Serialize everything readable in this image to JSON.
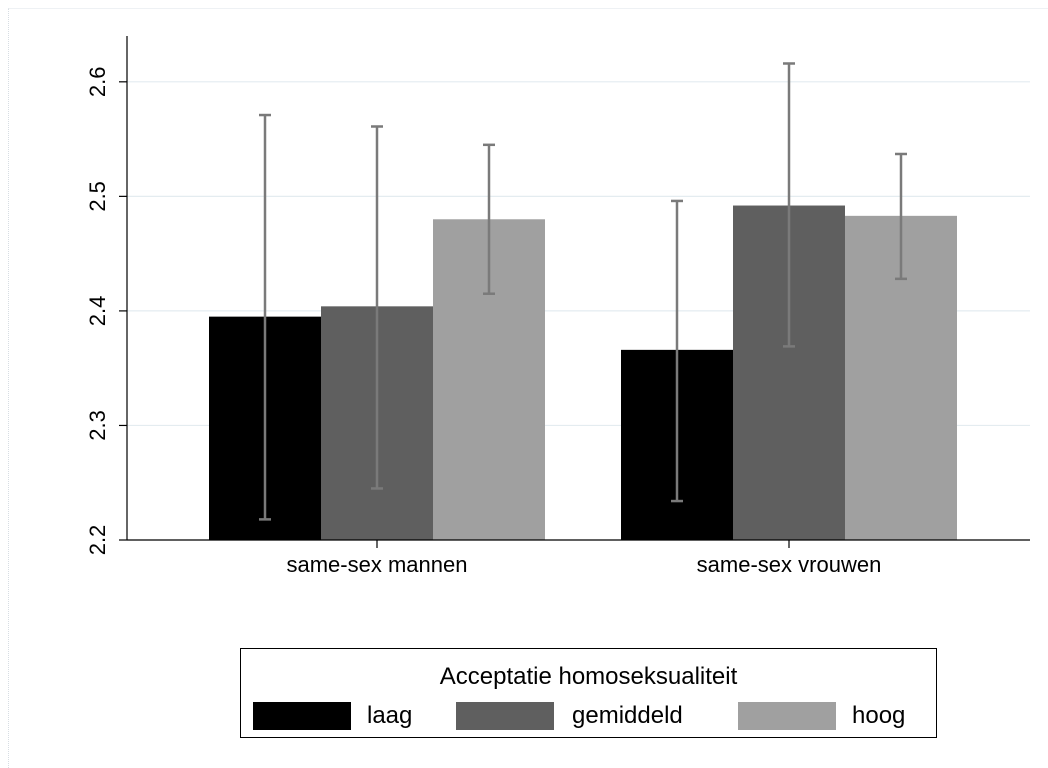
{
  "chart_data": {
    "type": "bar",
    "title": "",
    "xlabel": "",
    "ylabel": "",
    "categories": [
      "same-sex mannen",
      "same-sex vrouwen"
    ],
    "ylim": [
      2.2,
      2.64
    ],
    "yticks": [
      "2.2",
      "2.3",
      "2.4",
      "2.5",
      "2.6"
    ],
    "grid": true,
    "error_bars": true,
    "series": [
      {
        "name": "laag",
        "color": "#000000",
        "values": [
          2.395,
          2.366
        ],
        "ci_low": [
          2.218,
          2.234
        ],
        "ci_high": [
          2.571,
          2.496
        ]
      },
      {
        "name": "gemiddeld",
        "color": "#5f5f5f",
        "values": [
          2.404,
          2.492
        ],
        "ci_low": [
          2.245,
          2.369
        ],
        "ci_high": [
          2.561,
          2.616
        ]
      },
      {
        "name": "hoog",
        "color": "#a0a0a0",
        "values": [
          2.48,
          2.483
        ],
        "ci_low": [
          2.415,
          2.428
        ],
        "ci_high": [
          2.545,
          2.537
        ]
      }
    ],
    "legend": {
      "title": "Acceptatie homoseksualiteit",
      "position": "bottom"
    }
  }
}
